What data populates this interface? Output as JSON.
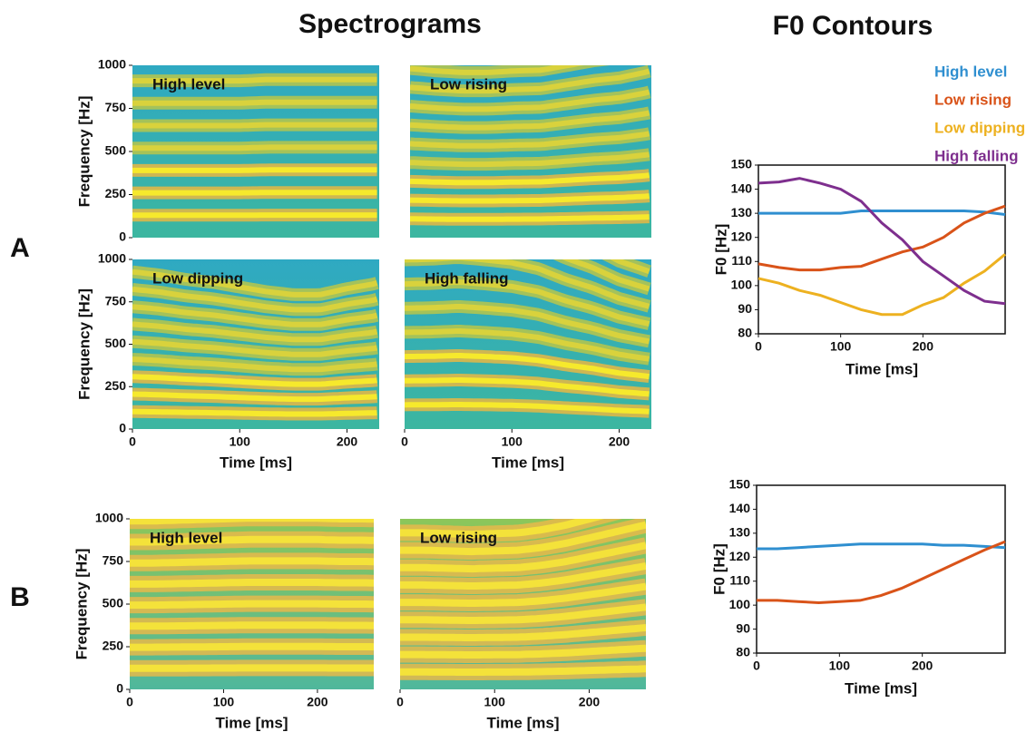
{
  "headings": [
    "Spectrograms",
    "F0 Contours"
  ],
  "panels": [
    "A",
    "B"
  ],
  "chart_data": [
    {
      "type": "spectrogram",
      "title": "High level",
      "ylabel": "Frequency [Hz]",
      "xlim": [
        0,
        230
      ],
      "ylim": [
        0,
        1000
      ],
      "yticks": [
        0,
        250,
        500,
        750,
        1000
      ]
    },
    {
      "type": "spectrogram",
      "title": "Low rising",
      "xlim": [
        0,
        230
      ],
      "ylim": [
        0,
        1000
      ]
    },
    {
      "type": "spectrogram",
      "title": "Low dipping",
      "ylabel": "Frequency [Hz]",
      "xlabel": "Time [ms]",
      "xlim": [
        0,
        230
      ],
      "ylim": [
        0,
        1000
      ],
      "xticks": [
        0,
        100,
        200
      ],
      "yticks": [
        0,
        250,
        500,
        750,
        1000
      ]
    },
    {
      "type": "spectrogram",
      "title": "High falling",
      "xlabel": "Time [ms]",
      "xlim": [
        0,
        230
      ],
      "ylim": [
        0,
        1000
      ],
      "xticks": [
        0,
        100,
        200
      ]
    },
    {
      "type": "spectrogram",
      "title": "High level",
      "ylabel": "Frequency [Hz]",
      "xlabel": "Time [ms]",
      "xlim": [
        0,
        260
      ],
      "ylim": [
        0,
        1000
      ],
      "xticks": [
        0,
        100,
        200
      ],
      "yticks": [
        0,
        250,
        500,
        750,
        1000
      ]
    },
    {
      "type": "spectrogram",
      "title": "Low rising",
      "xlabel": "Time [ms]",
      "xlim": [
        0,
        260
      ],
      "ylim": [
        0,
        1000
      ],
      "xticks": [
        0,
        100,
        200
      ]
    },
    {
      "type": "line",
      "xlabel": "Time [ms]",
      "ylabel": "F0 [Hz]",
      "xlim": [
        0,
        300
      ],
      "ylim": [
        80,
        150
      ],
      "xticks": [
        0,
        100,
        200
      ],
      "yticks": [
        80,
        90,
        100,
        110,
        120,
        130,
        140,
        150
      ],
      "x": [
        0,
        25,
        50,
        75,
        100,
        125,
        150,
        175,
        200,
        225,
        250,
        275,
        300
      ],
      "series": [
        {
          "name": "High level",
          "color": "#2f8fd0",
          "values": [
            130,
            130,
            130,
            130,
            130,
            131,
            131,
            131,
            131,
            131,
            131,
            130.5,
            129.5
          ]
        },
        {
          "name": "Low rising",
          "color": "#d95319",
          "values": [
            109,
            107.5,
            106.5,
            106.5,
            107.5,
            108,
            111,
            114,
            116,
            120,
            126,
            130,
            133
          ]
        },
        {
          "name": "Low dipping",
          "color": "#edb120",
          "values": [
            103,
            101,
            98,
            96,
            93,
            90,
            88,
            88,
            92,
            95,
            101,
            106,
            113
          ]
        },
        {
          "name": "High falling",
          "color": "#7e2f8e",
          "values": [
            142.5,
            143,
            144.5,
            142.5,
            140,
            135,
            126,
            119,
            110,
            104,
            98,
            93.5,
            92.5
          ]
        }
      ]
    },
    {
      "type": "line",
      "xlabel": "Time [ms]",
      "ylabel": "F0 [Hz]",
      "xlim": [
        0,
        300
      ],
      "ylim": [
        80,
        150
      ],
      "xticks": [
        0,
        100,
        200
      ],
      "yticks": [
        80,
        90,
        100,
        110,
        120,
        130,
        140,
        150
      ],
      "x": [
        0,
        25,
        50,
        75,
        100,
        125,
        150,
        175,
        200,
        225,
        250,
        275,
        300
      ],
      "series": [
        {
          "color": "#2f8fd0",
          "values": [
            123.5,
            123.5,
            124,
            124.5,
            125,
            125.5,
            125.5,
            125.5,
            125.5,
            125,
            125,
            124.5,
            124
          ]
        },
        {
          "color": "#d95319",
          "values": [
            102,
            102,
            101.5,
            101,
            101.5,
            102,
            104,
            107,
            111,
            115,
            119,
            123,
            126.5
          ]
        }
      ]
    }
  ]
}
